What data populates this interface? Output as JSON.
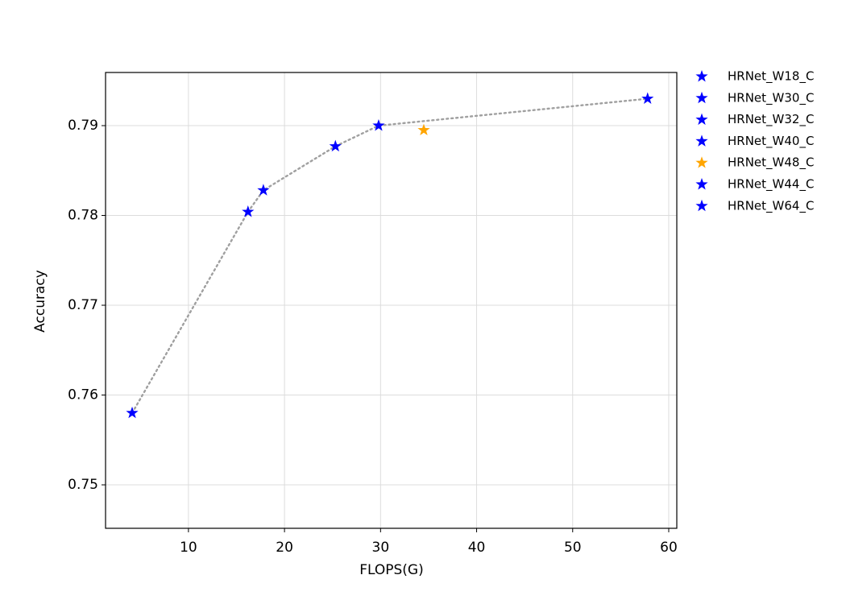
{
  "chart_data": {
    "type": "scatter",
    "x_label": "FLOPS(G)",
    "y_label": "Accuracy",
    "xlim": [
      1.37,
      60.84
    ],
    "ylim": [
      0.74516,
      0.79592
    ],
    "xticks": [
      10,
      20,
      30,
      40,
      50,
      60
    ],
    "yticks": [
      0.75,
      0.76,
      0.77,
      0.78,
      0.79
    ],
    "grid": true,
    "legend": "outside-right",
    "series": [
      {
        "name": "HRNet_W18_C",
        "color": "#0000ff",
        "x": [
          4.14
        ],
        "values": [
          0.758
        ]
      },
      {
        "name": "HRNet_W30_C",
        "color": "#0000ff",
        "x": [
          16.2
        ],
        "values": [
          0.7804
        ]
      },
      {
        "name": "HRNet_W32_C",
        "color": "#0000ff",
        "x": [
          17.8
        ],
        "values": [
          0.7828
        ]
      },
      {
        "name": "HRNet_W40_C",
        "color": "#0000ff",
        "x": [
          25.3
        ],
        "values": [
          0.7877
        ]
      },
      {
        "name": "HRNet_W48_C",
        "color": "#ffa500",
        "x": [
          34.5
        ],
        "values": [
          0.7895
        ]
      },
      {
        "name": "HRNet_W44_C",
        "color": "#0000ff",
        "x": [
          29.8
        ],
        "values": [
          0.79
        ]
      },
      {
        "name": "HRNet_W64_C",
        "color": "#0000ff",
        "x": [
          57.8
        ],
        "values": [
          0.793
        ]
      }
    ],
    "line": {
      "color": "#a0a0a0",
      "x": [
        4.14,
        16.2,
        17.8,
        25.3,
        29.8,
        57.8
      ],
      "values": [
        0.758,
        0.7804,
        0.7828,
        0.7877,
        0.79,
        0.793
      ]
    }
  }
}
